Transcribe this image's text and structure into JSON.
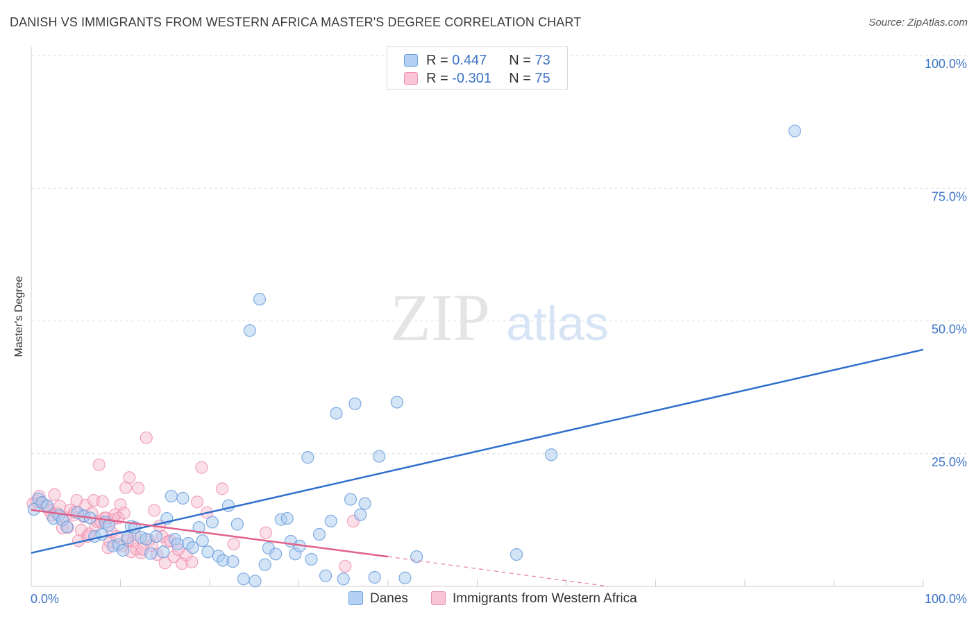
{
  "title": "DANISH VS IMMIGRANTS FROM WESTERN AFRICA MASTER'S DEGREE CORRELATION CHART",
  "source": "Source: ZipAtlas.com",
  "watermark": {
    "zip": "ZIP",
    "atlas": "atlas"
  },
  "legend": {
    "danes": {
      "r_label": "R = ",
      "r_value": "0.447",
      "n_label": "N = ",
      "n_value": "73"
    },
    "immigrants": {
      "r_label": "R = ",
      "r_value": "-0.301",
      "n_label": "N = ",
      "n_value": "75"
    }
  },
  "colors": {
    "danes_fill": "#a9c9f0",
    "danes_stroke": "#6b9fdc",
    "danes_line": "#2f6fcc",
    "immigrants_fill": "#f7b8cc",
    "immigrants_stroke": "#ee8fae",
    "immigrants_line": "#e0608a",
    "grid": "#dddddd",
    "tick_label": "#3d74c7"
  },
  "chart_data": {
    "type": "scatter",
    "title": "DANISH VS IMMIGRANTS FROM WESTERN AFRICA MASTER'S DEGREE CORRELATION CHART",
    "xlabel": "",
    "ylabel": "Master's Degree",
    "xlim": [
      0,
      100
    ],
    "ylim": [
      0,
      100
    ],
    "x_tick_labels": [
      "0.0%",
      "100.0%"
    ],
    "y_ticks": [
      25,
      50,
      75,
      100
    ],
    "y_tick_labels": [
      "25.0%",
      "50.0%",
      "75.0%",
      "100.0%"
    ],
    "grid": true,
    "legend_position": "top-center",
    "series": [
      {
        "name": "Danes",
        "r": 0.447,
        "n": 73,
        "trend": {
          "x0": 0,
          "y0": 6.3,
          "x1": 100,
          "y1": 44.6
        },
        "points": [
          [
            0.3,
            14.5
          ],
          [
            0.8,
            16.5
          ],
          [
            1.2,
            15.8
          ],
          [
            1.8,
            15.2
          ],
          [
            2.5,
            12.8
          ],
          [
            3.1,
            13.4
          ],
          [
            3.5,
            12.5
          ],
          [
            4.0,
            11.2
          ],
          [
            5.2,
            13.9
          ],
          [
            5.9,
            13.3
          ],
          [
            6.6,
            12.9
          ],
          [
            7.1,
            9.4
          ],
          [
            7.9,
            9.8
          ],
          [
            8.3,
            12.1
          ],
          [
            8.7,
            11.5
          ],
          [
            9.2,
            7.6
          ],
          [
            9.8,
            7.9
          ],
          [
            10.3,
            6.8
          ],
          [
            10.8,
            9.1
          ],
          [
            11.2,
            11.3
          ],
          [
            11.6,
            11.1
          ],
          [
            12.3,
            9.3
          ],
          [
            12.9,
            8.9
          ],
          [
            13.4,
            6.2
          ],
          [
            14.0,
            9.4
          ],
          [
            14.8,
            6.5
          ],
          [
            15.2,
            12.8
          ],
          [
            15.7,
            17.0
          ],
          [
            16.1,
            8.9
          ],
          [
            16.4,
            8.0
          ],
          [
            17.0,
            16.6
          ],
          [
            17.6,
            8.1
          ],
          [
            18.1,
            7.3
          ],
          [
            18.8,
            11.1
          ],
          [
            19.2,
            8.6
          ],
          [
            19.8,
            6.5
          ],
          [
            20.3,
            12.1
          ],
          [
            21.0,
            5.7
          ],
          [
            21.5,
            4.9
          ],
          [
            22.1,
            15.2
          ],
          [
            22.6,
            4.7
          ],
          [
            23.1,
            11.7
          ],
          [
            23.8,
            1.4
          ],
          [
            24.5,
            48.2
          ],
          [
            25.1,
            1.0
          ],
          [
            25.6,
            54.1
          ],
          [
            26.2,
            4.1
          ],
          [
            26.6,
            7.2
          ],
          [
            27.4,
            6.1
          ],
          [
            28.0,
            12.6
          ],
          [
            28.7,
            12.8
          ],
          [
            29.1,
            8.5
          ],
          [
            29.6,
            6.1
          ],
          [
            30.1,
            7.6
          ],
          [
            31.0,
            24.3
          ],
          [
            31.4,
            5.1
          ],
          [
            32.3,
            9.8
          ],
          [
            33.0,
            2.0
          ],
          [
            33.6,
            12.3
          ],
          [
            34.2,
            32.6
          ],
          [
            35.0,
            1.4
          ],
          [
            35.8,
            16.4
          ],
          [
            36.3,
            34.4
          ],
          [
            36.9,
            13.5
          ],
          [
            37.4,
            15.6
          ],
          [
            38.5,
            1.7
          ],
          [
            39.0,
            24.5
          ],
          [
            41.0,
            34.7
          ],
          [
            41.9,
            1.6
          ],
          [
            43.2,
            5.6
          ],
          [
            54.4,
            6.0
          ],
          [
            58.3,
            24.8
          ],
          [
            85.6,
            85.8
          ]
        ]
      },
      {
        "name": "Immigrants from Western Africa",
        "r": -0.301,
        "n": 75,
        "trend": {
          "x0": 0,
          "y0": 14.4,
          "x1": 40,
          "y1": 5.6
        },
        "trend_extension": {
          "x0": 40,
          "y0": 5.6,
          "x1": 64.7,
          "y1": 0
        },
        "points": [
          [
            0.2,
            15.6
          ],
          [
            0.6,
            16.0
          ],
          [
            0.9,
            17.0
          ],
          [
            1.3,
            15.6
          ],
          [
            1.7,
            15.1
          ],
          [
            2.0,
            14.3
          ],
          [
            2.3,
            13.4
          ],
          [
            2.6,
            17.3
          ],
          [
            2.9,
            13.8
          ],
          [
            3.2,
            15.1
          ],
          [
            3.5,
            11.0
          ],
          [
            3.8,
            13.0
          ],
          [
            4.1,
            11.1
          ],
          [
            4.4,
            14.4
          ],
          [
            4.7,
            13.4
          ],
          [
            4.9,
            14.0
          ],
          [
            5.1,
            16.2
          ],
          [
            5.3,
            8.6
          ],
          [
            5.6,
            10.6
          ],
          [
            5.9,
            13.1
          ],
          [
            6.1,
            15.3
          ],
          [
            6.3,
            9.4
          ],
          [
            6.5,
            9.9
          ],
          [
            6.8,
            13.8
          ],
          [
            7.0,
            16.2
          ],
          [
            7.2,
            11.3
          ],
          [
            7.4,
            12.2
          ],
          [
            7.6,
            22.9
          ],
          [
            7.8,
            12.2
          ],
          [
            8.0,
            16.0
          ],
          [
            8.2,
            12.9
          ],
          [
            8.4,
            12.9
          ],
          [
            8.6,
            7.3
          ],
          [
            8.8,
            8.4
          ],
          [
            9.0,
            10.2
          ],
          [
            9.2,
            12.6
          ],
          [
            9.4,
            13.5
          ],
          [
            9.6,
            9.4
          ],
          [
            9.8,
            12.9
          ],
          [
            10.0,
            15.4
          ],
          [
            10.2,
            7.6
          ],
          [
            10.4,
            13.8
          ],
          [
            10.6,
            18.6
          ],
          [
            10.8,
            8.6
          ],
          [
            11.0,
            20.5
          ],
          [
            11.2,
            6.5
          ],
          [
            11.4,
            8.5
          ],
          [
            11.6,
            9.7
          ],
          [
            11.8,
            7.0
          ],
          [
            12.0,
            18.5
          ],
          [
            12.3,
            6.3
          ],
          [
            12.5,
            7.0
          ],
          [
            12.9,
            28.0
          ],
          [
            13.2,
            8.7
          ],
          [
            13.5,
            7.7
          ],
          [
            13.8,
            14.3
          ],
          [
            14.1,
            6.0
          ],
          [
            14.4,
            11.4
          ],
          [
            14.7,
            9.4
          ],
          [
            15.0,
            4.4
          ],
          [
            15.3,
            8.4
          ],
          [
            15.6,
            8.6
          ],
          [
            16.0,
            5.6
          ],
          [
            16.5,
            6.9
          ],
          [
            16.9,
            4.3
          ],
          [
            17.4,
            5.9
          ],
          [
            18.0,
            4.6
          ],
          [
            18.6,
            15.9
          ],
          [
            19.1,
            22.4
          ],
          [
            19.7,
            13.9
          ],
          [
            21.4,
            18.4
          ],
          [
            22.7,
            8.0
          ],
          [
            26.3,
            10.1
          ],
          [
            35.2,
            3.8
          ],
          [
            36.1,
            12.3
          ]
        ]
      }
    ]
  }
}
